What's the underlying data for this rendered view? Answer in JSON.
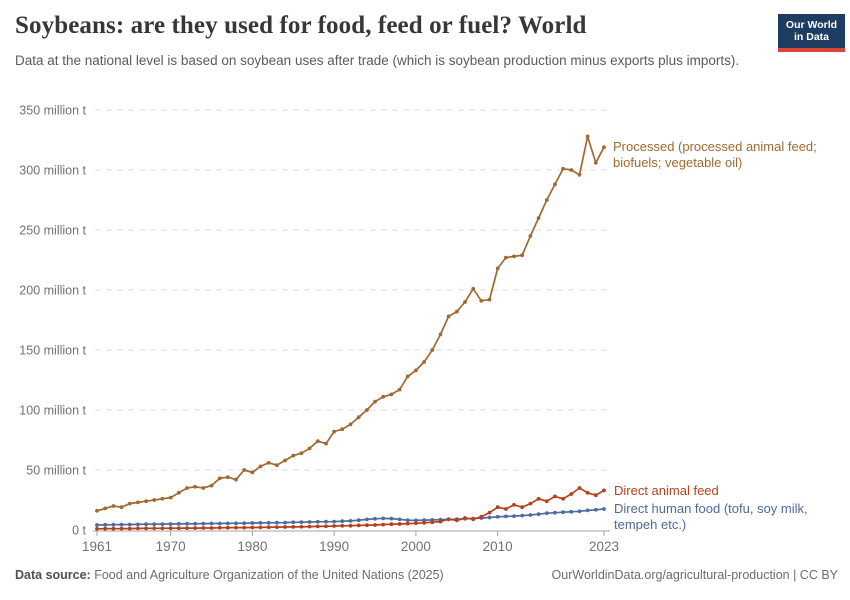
{
  "header": {
    "title": "Soybeans: are they used for food, feed or fuel? World",
    "subtitle": "Data at the national level is based on soybean uses after trade (which is soybean production minus exports plus imports)."
  },
  "logo": {
    "line1": "Our World",
    "line2": "in Data",
    "bg_color": "#1d3d63",
    "bar_color": "#dc4437"
  },
  "chart_data": {
    "type": "line",
    "title": "Soybeans: are they used for food, feed or fuel? World",
    "unit": "million t",
    "xlim": [
      1961,
      2023
    ],
    "ylim": [
      0,
      350
    ],
    "grid": true,
    "legend_position": "end-of-line labels",
    "xticks": [
      1961,
      1970,
      1980,
      1990,
      2000,
      2010,
      2023
    ],
    "yticks": [
      0,
      50,
      100,
      150,
      200,
      250,
      300,
      350
    ],
    "ytick_labels": [
      "0 t",
      "50 million t",
      "100 million t",
      "150 million t",
      "200 million t",
      "250 million t",
      "300 million t",
      "350 million t"
    ],
    "x": [
      1961,
      1962,
      1963,
      1964,
      1965,
      1966,
      1967,
      1968,
      1969,
      1970,
      1971,
      1972,
      1973,
      1974,
      1975,
      1976,
      1977,
      1978,
      1979,
      1980,
      1981,
      1982,
      1983,
      1984,
      1985,
      1986,
      1987,
      1988,
      1989,
      1990,
      1991,
      1992,
      1993,
      1994,
      1995,
      1996,
      1997,
      1998,
      1999,
      2000,
      2001,
      2002,
      2003,
      2004,
      2005,
      2006,
      2007,
      2008,
      2009,
      2010,
      2011,
      2012,
      2013,
      2014,
      2015,
      2016,
      2017,
      2018,
      2019,
      2020,
      2021,
      2022,
      2023
    ],
    "series": [
      {
        "name": "Processed (processed animal feed; biofuels; vegetable oil)",
        "color": "#a06932",
        "values": [
          16,
          18,
          20,
          19,
          22,
          23,
          24,
          25,
          26,
          27,
          31,
          35,
          36,
          35,
          37,
          43,
          44,
          42,
          50,
          48,
          53,
          56,
          54,
          58,
          62,
          64,
          68,
          74,
          72,
          82,
          84,
          88,
          94,
          100,
          107,
          111,
          113,
          117,
          128,
          133,
          140,
          150,
          163,
          178,
          182,
          190,
          201,
          191,
          192,
          218,
          227,
          228,
          229,
          245,
          260,
          275,
          288,
          301,
          300,
          296,
          328,
          306,
          319
        ]
      },
      {
        "name": "Direct animal feed",
        "color": "#b5401d",
        "values": [
          1,
          1.1,
          1.1,
          1.2,
          1.2,
          1.3,
          1.3,
          1.4,
          1.4,
          1.5,
          1.5,
          1.6,
          1.6,
          1.7,
          1.7,
          1.8,
          1.9,
          2,
          2,
          2.1,
          2.2,
          2.3,
          2.4,
          2.5,
          2.6,
          2.7,
          2.8,
          3,
          3.1,
          3.3,
          3.5,
          3.6,
          3.8,
          4,
          4.2,
          4.5,
          4.8,
          5,
          5.3,
          5.6,
          6,
          6.5,
          7,
          9,
          8,
          10,
          9,
          11,
          14.5,
          19,
          17.5,
          21,
          19,
          22,
          26,
          24,
          28,
          26,
          30,
          35,
          31,
          29,
          33
        ]
      },
      {
        "name": "Direct human food (tofu, soy milk, tempeh etc.)",
        "color": "#4d6b9d",
        "values": [
          4.2,
          4.3,
          4.4,
          4.5,
          4.6,
          4.7,
          4.8,
          4.8,
          4.9,
          5,
          5.1,
          5.2,
          5.2,
          5.3,
          5.4,
          5.4,
          5.5,
          5.6,
          5.7,
          5.8,
          5.9,
          6,
          6.1,
          6.2,
          6.4,
          6.5,
          6.7,
          6.8,
          6.9,
          7,
          7.3,
          7.6,
          8.2,
          8.8,
          9.3,
          9.7,
          9.5,
          8.8,
          8.2,
          8,
          8.2,
          8.4,
          8.6,
          8.8,
          9,
          9.3,
          9.6,
          10,
          10.4,
          11,
          11.3,
          11.6,
          12,
          12.5,
          13.2,
          14,
          14.4,
          14.8,
          15.2,
          15.6,
          16.3,
          16.8,
          17.5
        ]
      }
    ]
  },
  "series_labels": {
    "processed": {
      "lines": {
        "0": "Processed (processed animal feed;",
        "1": "biofuels; vegetable oil)"
      }
    },
    "animal": {
      "text": "Direct animal feed"
    },
    "human": {
      "lines": {
        "0": "Direct human food (tofu, soy milk,",
        "1": "tempeh etc.)"
      }
    }
  },
  "footer": {
    "source_label": "Data source:",
    "source_text": " Food and Agriculture Organization of the United Nations (2025)",
    "license": "OurWorldinData.org/agricultural-production | CC BY"
  }
}
